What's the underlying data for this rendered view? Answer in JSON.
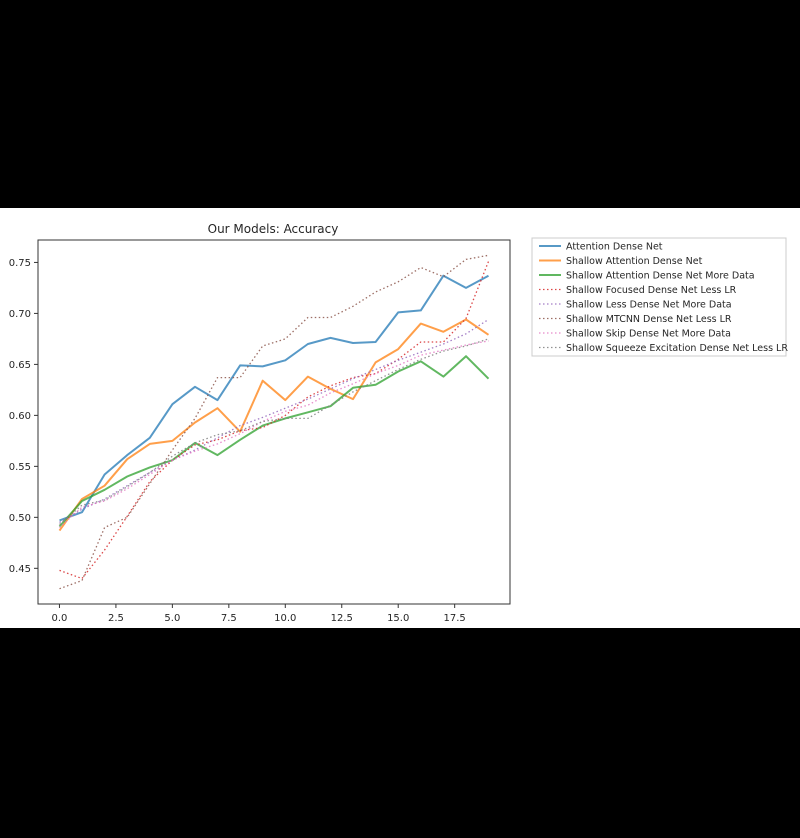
{
  "chart_data": {
    "type": "line",
    "title": "Our Models: Accuracy",
    "xlabel": "",
    "ylabel": "",
    "xlim": [
      -0.95,
      19.95
    ],
    "ylim": [
      0.415,
      0.772
    ],
    "x_ticks": [
      0.0,
      2.5,
      5.0,
      7.5,
      10.0,
      12.5,
      15.0,
      17.5
    ],
    "x_tick_labels": [
      "0.0",
      "2.5",
      "5.0",
      "7.5",
      "10.0",
      "12.5",
      "15.0",
      "17.5"
    ],
    "y_ticks": [
      0.45,
      0.5,
      0.55,
      0.6,
      0.65,
      0.7,
      0.75
    ],
    "y_tick_labels": [
      "0.45",
      "0.50",
      "0.55",
      "0.60",
      "0.65",
      "0.70",
      "0.75"
    ],
    "grid": false,
    "legend_position": "outside-right",
    "x": [
      0,
      1,
      2,
      3,
      4,
      5,
      6,
      7,
      8,
      9,
      10,
      11,
      12,
      13,
      14,
      15,
      16,
      17,
      18,
      19
    ],
    "series": [
      {
        "name": "Attention Dense Net",
        "color": "#1f77b4",
        "style": "solid",
        "values": [
          0.497,
          0.505,
          0.542,
          0.561,
          0.578,
          0.611,
          0.628,
          0.615,
          0.649,
          0.648,
          0.654,
          0.67,
          0.676,
          0.671,
          0.672,
          0.701,
          0.703,
          0.737,
          0.725,
          0.737
        ]
      },
      {
        "name": "Shallow Attention Dense Net",
        "color": "#ff7f0e",
        "style": "solid",
        "values": [
          0.487,
          0.518,
          0.531,
          0.557,
          0.572,
          0.575,
          0.593,
          0.607,
          0.584,
          0.634,
          0.615,
          0.638,
          0.626,
          0.616,
          0.652,
          0.665,
          0.69,
          0.682,
          0.694,
          0.679
        ]
      },
      {
        "name": "Shallow Attention Dense Net More Data",
        "color": "#2ca02c",
        "style": "solid",
        "values": [
          0.491,
          0.516,
          0.527,
          0.54,
          0.549,
          0.556,
          0.573,
          0.561,
          0.576,
          0.59,
          0.597,
          0.603,
          0.609,
          0.627,
          0.63,
          0.643,
          0.653,
          0.638,
          0.658,
          0.636
        ]
      },
      {
        "name": "Shallow Focused Dense Net Less LR",
        "color": "#d62728",
        "style": "dotted",
        "values": [
          0.448,
          0.44,
          0.468,
          0.501,
          0.535,
          0.556,
          0.571,
          0.576,
          0.585,
          0.588,
          0.6,
          0.618,
          0.629,
          0.637,
          0.641,
          0.655,
          0.672,
          0.672,
          0.695,
          0.751
        ]
      },
      {
        "name": "Shallow Less Dense Net More Data",
        "color": "#9467bd",
        "style": "dotted",
        "values": [
          0.495,
          0.508,
          0.518,
          0.531,
          0.544,
          0.556,
          0.566,
          0.578,
          0.59,
          0.598,
          0.607,
          0.616,
          0.626,
          0.636,
          0.645,
          0.654,
          0.662,
          0.67,
          0.68,
          0.694
        ]
      },
      {
        "name": "Shallow MTCNN Dense Net Less LR",
        "color": "#8c564b",
        "style": "dotted",
        "values": [
          0.43,
          0.438,
          0.49,
          0.5,
          0.533,
          0.566,
          0.597,
          0.637,
          0.637,
          0.668,
          0.675,
          0.696,
          0.696,
          0.707,
          0.721,
          0.731,
          0.745,
          0.736,
          0.753,
          0.757
        ]
      },
      {
        "name": "Shallow Skip Dense Net More Data",
        "color": "#e377c2",
        "style": "dotted",
        "values": [
          0.49,
          0.51,
          0.516,
          0.528,
          0.542,
          0.556,
          0.565,
          0.572,
          0.582,
          0.594,
          0.604,
          0.61,
          0.622,
          0.631,
          0.641,
          0.649,
          0.659,
          0.664,
          0.669,
          0.673
        ]
      },
      {
        "name": "Shallow Squeeze Excitation Dense Net Less LR",
        "color": "#7f7f7f",
        "style": "dotted",
        "values": [
          0.493,
          0.512,
          0.517,
          0.53,
          0.544,
          0.56,
          0.573,
          0.581,
          0.585,
          0.594,
          0.597,
          0.597,
          0.61,
          0.623,
          0.634,
          0.645,
          0.655,
          0.663,
          0.668,
          0.675
        ]
      }
    ]
  }
}
